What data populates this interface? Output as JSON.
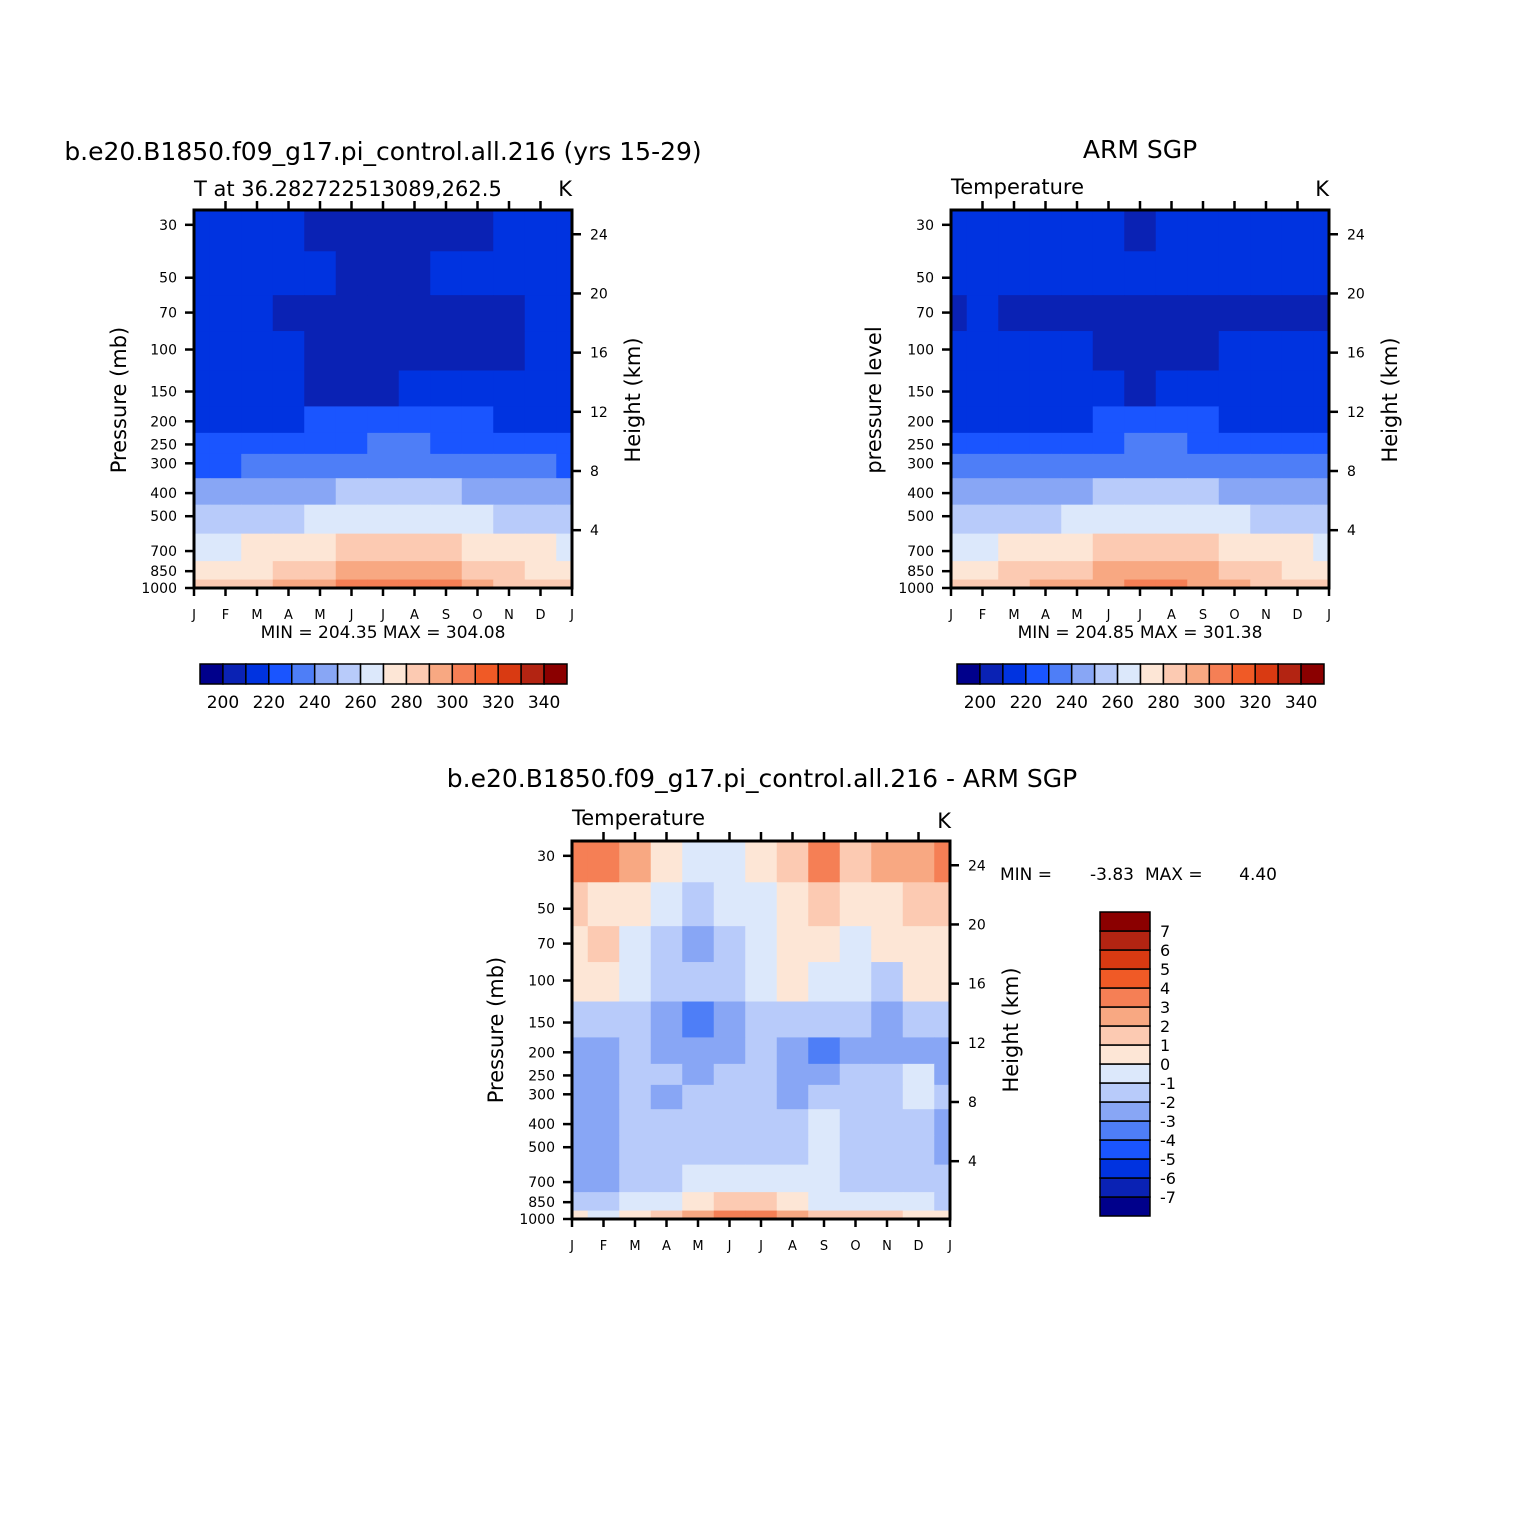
{
  "chart_data": [
    {
      "id": "model",
      "type": "heatmap",
      "title": "b.e20.B1850.f09_g17.pi_control.all.216 (yrs 15-29)",
      "subtitle": "T at 36.282722513089,262.5",
      "units": "K",
      "ylabel": "Pressure (mb)",
      "ylabel_right": "Height (km)",
      "x_ticks": [
        "J",
        "F",
        "M",
        "A",
        "M",
        "J",
        "J",
        "A",
        "S",
        "O",
        "N",
        "D",
        "J"
      ],
      "pressure_ticks": [
        "30",
        "50",
        "70",
        "100",
        "150",
        "200",
        "250",
        "300",
        "400",
        "500",
        "700",
        "850",
        "1000"
      ],
      "height_ticks": [
        "24",
        "20",
        "16",
        "12",
        "8",
        "4"
      ],
      "stats": "MIN = 204.35 MAX = 304.08",
      "min": 204.35,
      "max": 304.08,
      "colorbar_ticks": [
        "200",
        "220",
        "240",
        "260",
        "280",
        "300",
        "320",
        "340"
      ],
      "colorbar_levels": [
        190,
        200,
        210,
        220,
        230,
        240,
        250,
        260,
        270,
        280,
        290,
        300,
        310,
        320,
        330,
        340,
        350
      ]
    },
    {
      "id": "obs",
      "type": "heatmap",
      "title": "ARM SGP",
      "subtitle": "Temperature",
      "units": "K",
      "ylabel": "pressure level",
      "ylabel_right": "Height (km)",
      "x_ticks": [
        "J",
        "F",
        "M",
        "A",
        "M",
        "J",
        "J",
        "A",
        "S",
        "O",
        "N",
        "D",
        "J"
      ],
      "pressure_ticks": [
        "30",
        "50",
        "70",
        "100",
        "150",
        "200",
        "250",
        "300",
        "400",
        "500",
        "700",
        "850",
        "1000"
      ],
      "height_ticks": [
        "24",
        "20",
        "16",
        "12",
        "8",
        "4"
      ],
      "stats": "MIN = 204.85 MAX = 301.38",
      "min": 204.85,
      "max": 301.38,
      "colorbar_ticks": [
        "200",
        "220",
        "240",
        "260",
        "280",
        "300",
        "320",
        "340"
      ],
      "colorbar_levels": [
        190,
        200,
        210,
        220,
        230,
        240,
        250,
        260,
        270,
        280,
        290,
        300,
        310,
        320,
        330,
        340,
        350
      ]
    },
    {
      "id": "diff",
      "type": "heatmap",
      "title": "b.e20.B1850.f09_g17.pi_control.all.216 - ARM SGP",
      "subtitle": "Temperature",
      "units": "K",
      "ylabel": "Pressure (mb)",
      "ylabel_right": "Height (km)",
      "x_ticks": [
        "J",
        "F",
        "M",
        "A",
        "M",
        "J",
        "J",
        "A",
        "S",
        "O",
        "N",
        "D",
        "J"
      ],
      "pressure_ticks": [
        "30",
        "50",
        "70",
        "100",
        "150",
        "200",
        "250",
        "300",
        "400",
        "500",
        "700",
        "850",
        "1000"
      ],
      "height_ticks": [
        "24",
        "20",
        "16",
        "12",
        "8",
        "4"
      ],
      "stats_min_label": "MIN =",
      "stats_min_value": "-3.83",
      "stats_max_label": "MAX =",
      "stats_max_value": "4.40",
      "min": -3.83,
      "max": 4.4,
      "colorbar_ticks": [
        "7",
        "6",
        "5",
        "4",
        "3",
        "2",
        "1",
        "0",
        "-1",
        "-2",
        "-3",
        "-4",
        "-5",
        "-6",
        "-7"
      ],
      "colorbar_levels": [
        -8,
        -7,
        -6,
        -5,
        -4,
        -3,
        -2,
        -1,
        0,
        1,
        2,
        3,
        4,
        5,
        6,
        7,
        8
      ]
    }
  ],
  "palette": [
    "#00008b",
    "#0a22b4",
    "#0033e0",
    "#1a55ff",
    "#4e7ef7",
    "#88a6f5",
    "#b8cbfa",
    "#dce8fb",
    "#fde6d6",
    "#fccab2",
    "#f8a882",
    "#f57f55",
    "#f05a26",
    "#d93a12",
    "#b32412",
    "#8b0000"
  ],
  "months": [
    0,
    1,
    2,
    3,
    4,
    5,
    6,
    7,
    8,
    9,
    10,
    11,
    12
  ],
  "pressure_levels": [
    30,
    50,
    70,
    100,
    150,
    200,
    250,
    300,
    400,
    500,
    700,
    850,
    1000
  ],
  "model_temp": [
    [
      215,
      214,
      212,
      210,
      208,
      207,
      206,
      206,
      207,
      209,
      211,
      213,
      215
    ],
    [
      213,
      213,
      213,
      211,
      210,
      209,
      209,
      209,
      210,
      211,
      212,
      213,
      213
    ],
    [
      212,
      210,
      211,
      208,
      206,
      205,
      205,
      205,
      206,
      207,
      208,
      210,
      212
    ],
    [
      213,
      213,
      212,
      212,
      205,
      204,
      205,
      205,
      206,
      207,
      208,
      210,
      213
    ],
    [
      217,
      217,
      216,
      215,
      209,
      209,
      209,
      210,
      210,
      211,
      213,
      215,
      217
    ],
    [
      219,
      219,
      219,
      219,
      220,
      221,
      222,
      222,
      221,
      220,
      219,
      219,
      219
    ],
    [
      222,
      222,
      223,
      224,
      226,
      229,
      231,
      231,
      229,
      226,
      224,
      223,
      222
    ],
    [
      229,
      229,
      230,
      232,
      234,
      236,
      238,
      238,
      236,
      233,
      231,
      230,
      229
    ],
    [
      243,
      243,
      244,
      246,
      249,
      252,
      254,
      254,
      252,
      249,
      246,
      244,
      243
    ],
    [
      254,
      254,
      255,
      258,
      261,
      264,
      266,
      266,
      264,
      261,
      258,
      256,
      254
    ],
    [
      268,
      268,
      270,
      273,
      277,
      281,
      283,
      283,
      281,
      277,
      273,
      270,
      268
    ],
    [
      276,
      277,
      279,
      283,
      288,
      292,
      295,
      295,
      292,
      287,
      282,
      278,
      276
    ],
    [
      282,
      283,
      286,
      291,
      296,
      300,
      303,
      303,
      300,
      294,
      288,
      284,
      282
    ]
  ],
  "obs_temp": [
    [
      214,
      214,
      213,
      212,
      211,
      210,
      209,
      210,
      211,
      212,
      213,
      214,
      214
    ],
    [
      212,
      212,
      212,
      211,
      211,
      211,
      211,
      211,
      211,
      211,
      212,
      212,
      212
    ],
    [
      209,
      210,
      209,
      208,
      208,
      207,
      206,
      207,
      208,
      208,
      209,
      209,
      209
    ],
    [
      212,
      212,
      212,
      211,
      210,
      209,
      208,
      209,
      209,
      210,
      212,
      210,
      212
    ],
    [
      216,
      216,
      216,
      215,
      214,
      210,
      209,
      210,
      211,
      213,
      215,
      216,
      216
    ],
    [
      219,
      219,
      219,
      219,
      219,
      220,
      221,
      221,
      220,
      219,
      219,
      219,
      219
    ],
    [
      223,
      223,
      224,
      224,
      226,
      228,
      230,
      230,
      228,
      226,
      224,
      223,
      223
    ],
    [
      230,
      230,
      231,
      232,
      234,
      237,
      238,
      238,
      236,
      234,
      232,
      231,
      230
    ],
    [
      243,
      243,
      244,
      246,
      249,
      252,
      254,
      254,
      252,
      249,
      246,
      244,
      243
    ],
    [
      255,
      255,
      256,
      258,
      261,
      264,
      266,
      266,
      264,
      261,
      258,
      256,
      255
    ],
    [
      269,
      269,
      271,
      274,
      278,
      282,
      284,
      284,
      282,
      278,
      274,
      271,
      269
    ],
    [
      277,
      277,
      280,
      284,
      289,
      292,
      294,
      294,
      292,
      288,
      283,
      279,
      277
    ],
    [
      282,
      283,
      286,
      290,
      294,
      298,
      300,
      300,
      298,
      293,
      288,
      284,
      282
    ]
  ],
  "diff_temp": [
    [
      3.5,
      3.8,
      2.5,
      0.5,
      -0.5,
      -1.0,
      0.2,
      1.5,
      3.5,
      1.5,
      2.0,
      2.5,
      3.5
    ],
    [
      1.5,
      0.5,
      0.5,
      -0.5,
      -1.5,
      -0.5,
      -0.5,
      0.5,
      1.0,
      0.5,
      0.5,
      1.0,
      1.5
    ],
    [
      0.5,
      1.2,
      -0.5,
      -1.5,
      -2.5,
      -1.5,
      -1.0,
      0.5,
      0.3,
      -0.5,
      0.2,
      0.5,
      0.5
    ],
    [
      0.5,
      0.2,
      -0.5,
      -1.5,
      -1.5,
      -1.5,
      -0.5,
      0.5,
      -0.5,
      -0.5,
      -1.5,
      0.5,
      0.5
    ],
    [
      -1.5,
      -1.5,
      -2.0,
      -3.0,
      -3.5,
      -2.5,
      -2.0,
      -1.5,
      -2.0,
      -2.0,
      -2.5,
      -2.0,
      -1.5
    ],
    [
      -3.0,
      -2.5,
      -2.0,
      -2.5,
      -3.0,
      -2.5,
      -2.0,
      -3.0,
      -3.8,
      -2.5,
      -2.5,
      -2.5,
      -3.0
    ],
    [
      -2.5,
      -2.5,
      -2.0,
      -2.0,
      -2.5,
      -1.5,
      -1.5,
      -2.5,
      -2.5,
      -2.0,
      -1.5,
      -0.8,
      -2.5
    ],
    [
      -2.5,
      -2.5,
      -1.5,
      -2.5,
      -2.0,
      -1.5,
      -1.5,
      -2.5,
      -1.5,
      -2.0,
      -1.5,
      -0.5,
      -2.0
    ],
    [
      -3.0,
      -2.5,
      -2.0,
      -2.0,
      -1.5,
      -1.5,
      -1.5,
      -1.5,
      -0.5,
      -1.5,
      -1.5,
      -1.5,
      -2.5
    ],
    [
      -2.5,
      -2.5,
      -2.0,
      -1.5,
      -1.5,
      -1.5,
      -1.5,
      -1.5,
      -0.5,
      -1.5,
      -1.5,
      -1.5,
      -2.5
    ],
    [
      -2.5,
      -2.5,
      -1.5,
      -1.5,
      -1.0,
      -0.5,
      -0.5,
      -0.5,
      -0.5,
      -1.5,
      -1.5,
      -1.5,
      -2.0
    ],
    [
      -1.5,
      -1.5,
      -1.0,
      -0.5,
      0.5,
      1.5,
      1.5,
      0.5,
      -0.5,
      -0.5,
      -0.5,
      -0.5,
      -1.5
    ],
    [
      0.0,
      -0.5,
      0.5,
      1.5,
      2.5,
      3.5,
      3.0,
      2.5,
      1.5,
      1.0,
      1.0,
      0.5,
      0.0
    ]
  ]
}
